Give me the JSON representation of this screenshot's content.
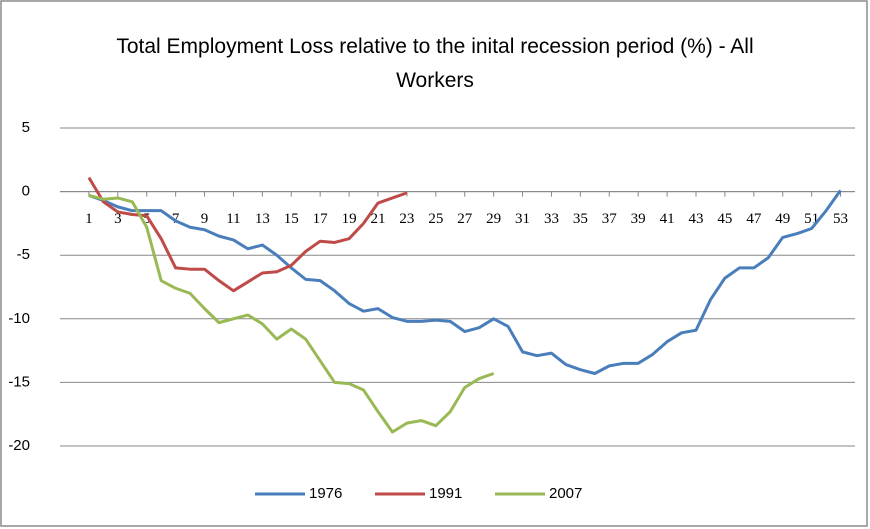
{
  "chart_data": {
    "type": "line",
    "title": "Total Employment  Loss relative to the inital recession period (%) - All Workers",
    "x": [
      1,
      2,
      3,
      4,
      5,
      6,
      7,
      8,
      9,
      10,
      11,
      12,
      13,
      14,
      15,
      16,
      17,
      18,
      19,
      20,
      21,
      22,
      23,
      24,
      25,
      26,
      27,
      28,
      29,
      30,
      31,
      32,
      33,
      34,
      35,
      36,
      37,
      38,
      39,
      40,
      41,
      42,
      43,
      44,
      45,
      46,
      47,
      48,
      49,
      50,
      51,
      52,
      53
    ],
    "xlim": [
      -1,
      54
    ],
    "xticks": [
      1,
      3,
      5,
      7,
      9,
      11,
      13,
      15,
      17,
      19,
      21,
      23,
      25,
      27,
      29,
      31,
      33,
      35,
      37,
      39,
      41,
      43,
      45,
      47,
      49,
      51,
      53
    ],
    "ylim": [
      -20,
      5
    ],
    "yticks": [
      -20,
      -15,
      -10,
      -5,
      0,
      5
    ],
    "grid": true,
    "legend": "bottom",
    "series": [
      {
        "name": "1976",
        "color": "#4a7ebb",
        "values": [
          -0.3,
          -0.7,
          -1.2,
          -1.5,
          -1.5,
          -1.5,
          -2.3,
          -2.8,
          -3.0,
          -3.5,
          -3.8,
          -4.5,
          -4.2,
          -5.0,
          -6.0,
          -6.9,
          -7.0,
          -7.8,
          -8.8,
          -9.4,
          -9.2,
          -9.9,
          -10.2,
          -10.2,
          -10.1,
          -10.2,
          -11.0,
          -10.7,
          -10.0,
          -10.6,
          -12.6,
          -12.9,
          -12.7,
          -13.6,
          -14.0,
          -14.3,
          -13.7,
          -13.5,
          -13.5,
          -12.8,
          -11.8,
          -11.1,
          -10.9,
          -8.5,
          -6.8,
          -6.0,
          -6.0,
          -5.2,
          -3.6,
          -3.3,
          -2.9,
          -1.5,
          0.1
        ]
      },
      {
        "name": "1991",
        "color": "#be4b48",
        "values": [
          1.1,
          -0.8,
          -1.6,
          -1.8,
          -1.9,
          -3.7,
          -6.0,
          -6.1,
          -6.1,
          -7.0,
          -7.8,
          -7.1,
          -6.4,
          -6.3,
          -5.8,
          -4.7,
          -3.9,
          -4.0,
          -3.7,
          -2.5,
          -0.9,
          -0.5,
          -0.1,
          null,
          null,
          null,
          null,
          null,
          null,
          null,
          null,
          null,
          null,
          null,
          null,
          null,
          null,
          null,
          null,
          null,
          null,
          null,
          null,
          null,
          null,
          null,
          null,
          null,
          null,
          null,
          null,
          null,
          null
        ]
      },
      {
        "name": "2007",
        "color": "#98b954",
        "values": [
          -0.3,
          -0.6,
          -0.5,
          -0.8,
          -2.8,
          -7.0,
          -7.6,
          -8.0,
          -9.2,
          -10.3,
          -10.0,
          -9.7,
          -10.4,
          -11.6,
          -10.8,
          -11.6,
          -13.3,
          -15.0,
          -15.1,
          -15.6,
          -17.3,
          -18.9,
          -18.2,
          -18.0,
          -18.4,
          -17.3,
          -15.4,
          -14.7,
          -14.3,
          null,
          null,
          null,
          null,
          null,
          null,
          null,
          null,
          null,
          null,
          null,
          null,
          null,
          null,
          null,
          null,
          null,
          null,
          null,
          null,
          null,
          null,
          null,
          null
        ]
      }
    ]
  }
}
